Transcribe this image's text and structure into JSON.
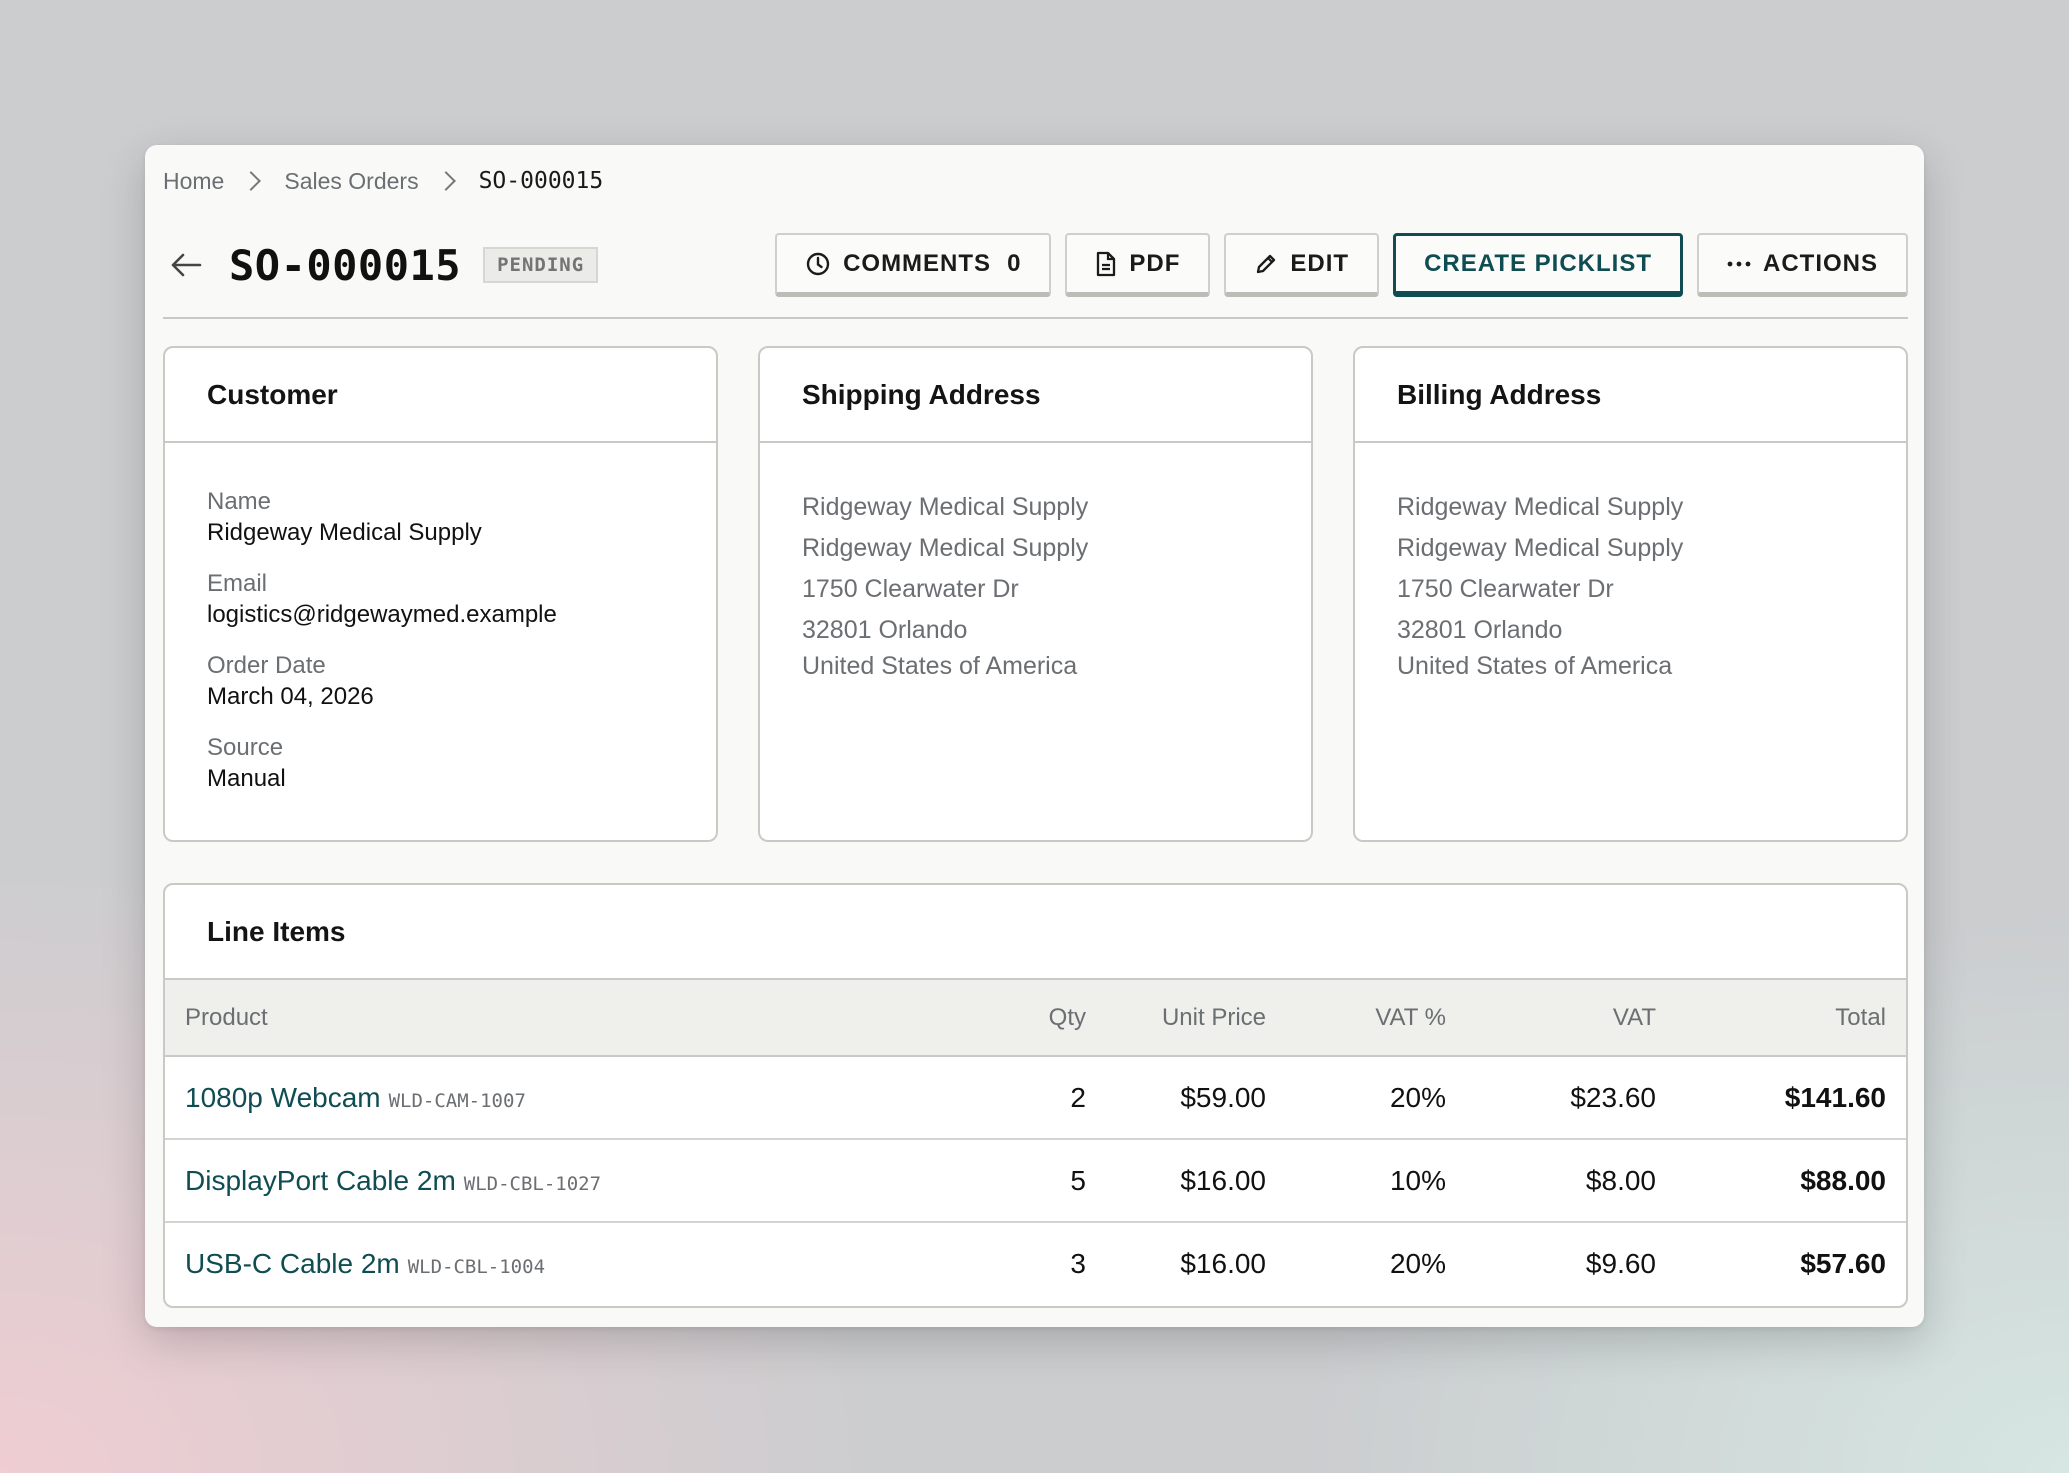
{
  "breadcrumb": {
    "home": "Home",
    "sales_orders": "Sales Orders",
    "current": "SO-000015"
  },
  "header": {
    "title": "SO-000015",
    "status": "PENDING",
    "buttons": {
      "comments_label": "COMMENTS",
      "comments_count": "0",
      "pdf_label": "PDF",
      "edit_label": "EDIT",
      "create_picklist_label": "CREATE PICKLIST",
      "actions_label": "ACTIONS"
    },
    "icons": [
      "back-arrow-icon",
      "clock-icon",
      "document-icon",
      "pencil-icon",
      "more-dots-icon"
    ]
  },
  "customer": {
    "heading": "Customer",
    "name_label": "Name",
    "name": "Ridgeway Medical Supply",
    "email_label": "Email",
    "email": "logistics@ridgewaymed.example",
    "order_date_label": "Order Date",
    "order_date": "March 04, 2026",
    "source_label": "Source",
    "source": "Manual"
  },
  "shipping": {
    "heading": "Shipping Address",
    "lines": [
      "Ridgeway Medical Supply",
      "Ridgeway Medical Supply",
      "1750 Clearwater Dr",
      "32801 Orlando",
      "United States of America"
    ]
  },
  "billing": {
    "heading": "Billing Address",
    "lines": [
      "Ridgeway Medical Supply",
      "Ridgeway Medical Supply",
      "1750 Clearwater Dr",
      "32801 Orlando",
      "United States of America"
    ]
  },
  "line_items": {
    "heading": "Line Items",
    "columns": {
      "product": "Product",
      "qty": "Qty",
      "unit_price": "Unit Price",
      "vat_pct": "VAT %",
      "vat": "VAT",
      "total": "Total"
    },
    "rows": [
      {
        "product": "1080p Webcam",
        "sku": "WLD-CAM-1007",
        "qty": "2",
        "unit_price": "$59.00",
        "vat_pct": "20%",
        "vat": "$23.60",
        "total": "$141.60"
      },
      {
        "product": "DisplayPort Cable 2m",
        "sku": "WLD-CBL-1027",
        "qty": "5",
        "unit_price": "$16.00",
        "vat_pct": "10%",
        "vat": "$8.00",
        "total": "$88.00"
      },
      {
        "product": "USB-C Cable 2m",
        "sku": "WLD-CBL-1004",
        "qty": "3",
        "unit_price": "$16.00",
        "vat_pct": "20%",
        "vat": "$9.60",
        "total": "$57.60"
      }
    ]
  },
  "colors": {
    "accent": "#0f4d52",
    "muted_text": "#6b6e72",
    "border": "#c9c9c5",
    "panel_bg": "#f9f9f7"
  }
}
